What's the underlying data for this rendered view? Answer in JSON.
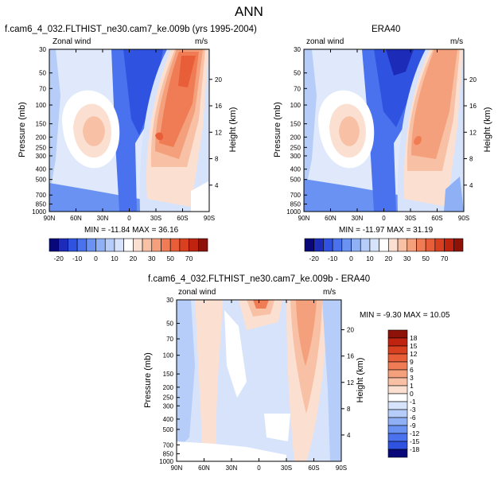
{
  "title": "ANN",
  "chart_data": [
    {
      "type": "contour",
      "title": "f.cam6_4_032.FLTHIST_ne30.cam7_ke.009b (yrs 1995-2004)",
      "left_label": "Zonal wind",
      "right_label": "m/s",
      "ylabel": "Pressure (mb)",
      "y2label": "Height (km)",
      "x_ticks": [
        "90N",
        "60N",
        "30N",
        "0",
        "30S",
        "60S",
        "90S"
      ],
      "y_ticks": [
        "30",
        "50",
        "70",
        "100",
        "150",
        "200",
        "250",
        "300",
        "400",
        "500",
        "700",
        "850",
        "1000"
      ],
      "y2_ticks": [
        "20",
        "16",
        "12",
        "8",
        "4"
      ],
      "min_max_text": "MIN = -11.84   MAX = 36.16",
      "min": -11.84,
      "max": 36.16
    },
    {
      "type": "contour",
      "title": "ERA40",
      "left_label": "zonal wind",
      "right_label": "m/s",
      "ylabel": "Pressure (mb)",
      "y2label": "Height (km)",
      "x_ticks": [
        "90N",
        "60N",
        "30N",
        "0",
        "30S",
        "60S",
        "90S"
      ],
      "y_ticks": [
        "30",
        "50",
        "70",
        "100",
        "150",
        "200",
        "250",
        "300",
        "400",
        "500",
        "700",
        "850",
        "1000"
      ],
      "y2_ticks": [
        "20",
        "16",
        "12",
        "8",
        "4"
      ],
      "min_max_text": "MIN = -11.97   MAX = 31.19",
      "min": -11.97,
      "max": 31.19
    },
    {
      "type": "contour",
      "title": "f.cam6_4_032.FLTHIST_ne30.cam7_ke.009b - ERA40",
      "left_label": "zonal wind",
      "right_label": "m/s",
      "ylabel": "Pressure (mb)",
      "y2label": "Height (km)",
      "x_ticks": [
        "90N",
        "60N",
        "30N",
        "0",
        "30S",
        "60S",
        "90S"
      ],
      "y_ticks": [
        "30",
        "50",
        "70",
        "100",
        "150",
        "200",
        "250",
        "300",
        "400",
        "500",
        "700",
        "850",
        "1000"
      ],
      "y2_ticks": [
        "20",
        "16",
        "12",
        "8",
        "4"
      ],
      "min_max_text": "MIN = -9.30   MAX =  10.05",
      "min": -9.3,
      "max": 10.05
    }
  ],
  "colorbar_top": {
    "labels": [
      "-20",
      "-10",
      "0",
      "10",
      "20",
      "30",
      "50",
      "70"
    ],
    "colors": [
      "#08087a",
      "#1c2bb8",
      "#2f52e0",
      "#4a72ee",
      "#6a92f2",
      "#8fb0f5",
      "#b5cdf8",
      "#d6e3fb",
      "#ffffff",
      "#fbe0d2",
      "#f8c0a4",
      "#f4a07c",
      "#f07c55",
      "#e85e38",
      "#d8401f",
      "#c02410",
      "#8e1208"
    ]
  },
  "colorbar_diff": {
    "labels": [
      "18",
      "15",
      "12",
      "9",
      "6",
      "3",
      "1",
      "0",
      "-1",
      "-3",
      "-6",
      "-9",
      "-12",
      "-15",
      "-18"
    ],
    "colors": [
      "#8e1208",
      "#c02410",
      "#d8401f",
      "#e85e38",
      "#f07c55",
      "#f4a07c",
      "#f8c0a4",
      "#fbe0d2",
      "#ffffff",
      "#d6e3fb",
      "#b5cdf8",
      "#8fb0f5",
      "#6a92f2",
      "#4a72ee",
      "#2f52e0",
      "#08087a"
    ]
  }
}
